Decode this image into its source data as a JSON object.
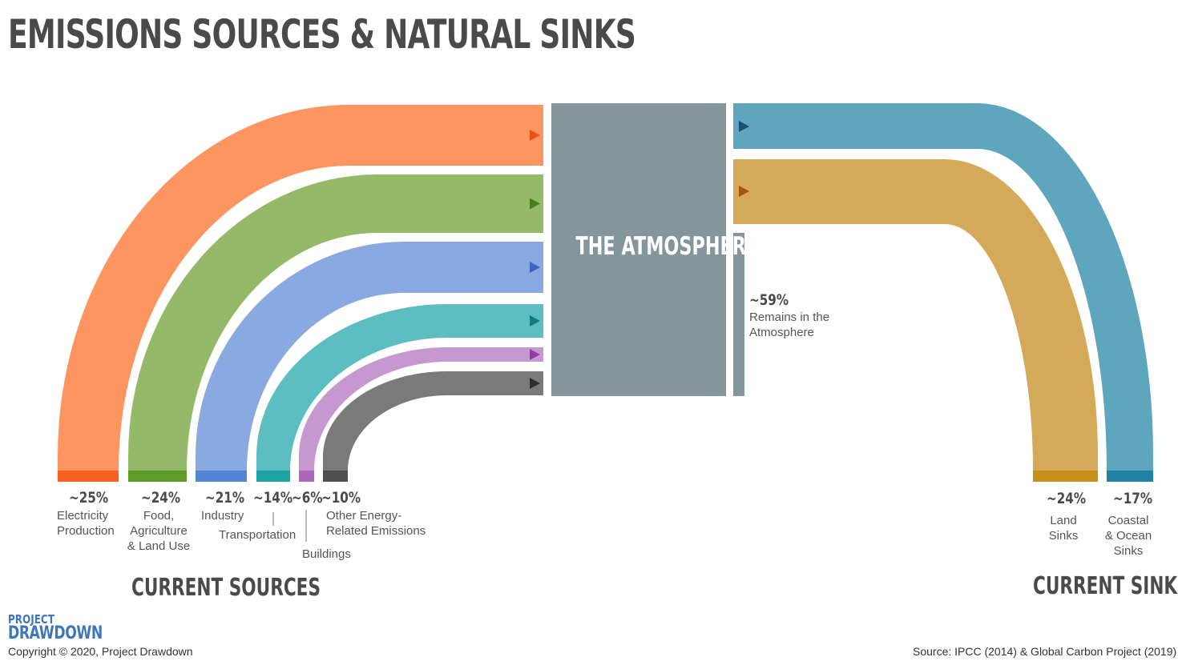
{
  "title": "EMISSIONS SOURCES & NATURAL SINKS",
  "atmosphere": {
    "label": "THE ATMOSPHERE"
  },
  "remains": {
    "percent": "~59%",
    "label": "Remains in the\nAtmosphere",
    "color": "#84969c"
  },
  "sources": [
    {
      "percent": "~25%",
      "label": "Electricity\nProduction",
      "color": "#fd9560",
      "dark": "#f86120",
      "arrow": "#f04e18"
    },
    {
      "percent": "~24%",
      "label": "Food,\nAgriculture\n& Land Use",
      "color": "#94ba69",
      "dark": "#5f9a2a",
      "arrow": "#4c7f1c"
    },
    {
      "percent": "~21%",
      "label": "Industry",
      "color": "#89a9e0",
      "dark": "#5285d4",
      "arrow": "#3a63c4"
    },
    {
      "percent": "~14%",
      "label": "Transportation",
      "color": "#5cbec1",
      "dark": "#1da3a4",
      "arrow": "#117d80"
    },
    {
      "percent": "~6%",
      "label": "Buildings",
      "color": "#c797d0",
      "dark": "#ad68ba",
      "arrow": "#8f3f9e"
    },
    {
      "percent": "~10%",
      "label": "Other Energy-\nRelated Emissions",
      "color": "#7a7a7a",
      "dark": "#4f4f4f",
      "arrow": "#2e2e2e"
    }
  ],
  "sinks": [
    {
      "percent": "~24%",
      "label": "Land\nSinks",
      "color": "#d4a95a",
      "dark": "#c8901a",
      "arrow": "#a5531a"
    },
    {
      "percent": "~17%",
      "label": "Coastal\n& Ocean\nSinks",
      "color": "#5ea5be",
      "dark": "#1f82a3",
      "arrow": "#1d4e78"
    }
  ],
  "sections": {
    "sources": "CURRENT SOURCES",
    "sinks": "CURRENT SINKS"
  },
  "logo": {
    "line1": "PROJECT",
    "line2": "DRAWDOWN"
  },
  "copyright": "Copyright © 2020, Project Drawdown",
  "source_note": "Source: IPCC (2014) & Global Carbon Project (2019)"
}
